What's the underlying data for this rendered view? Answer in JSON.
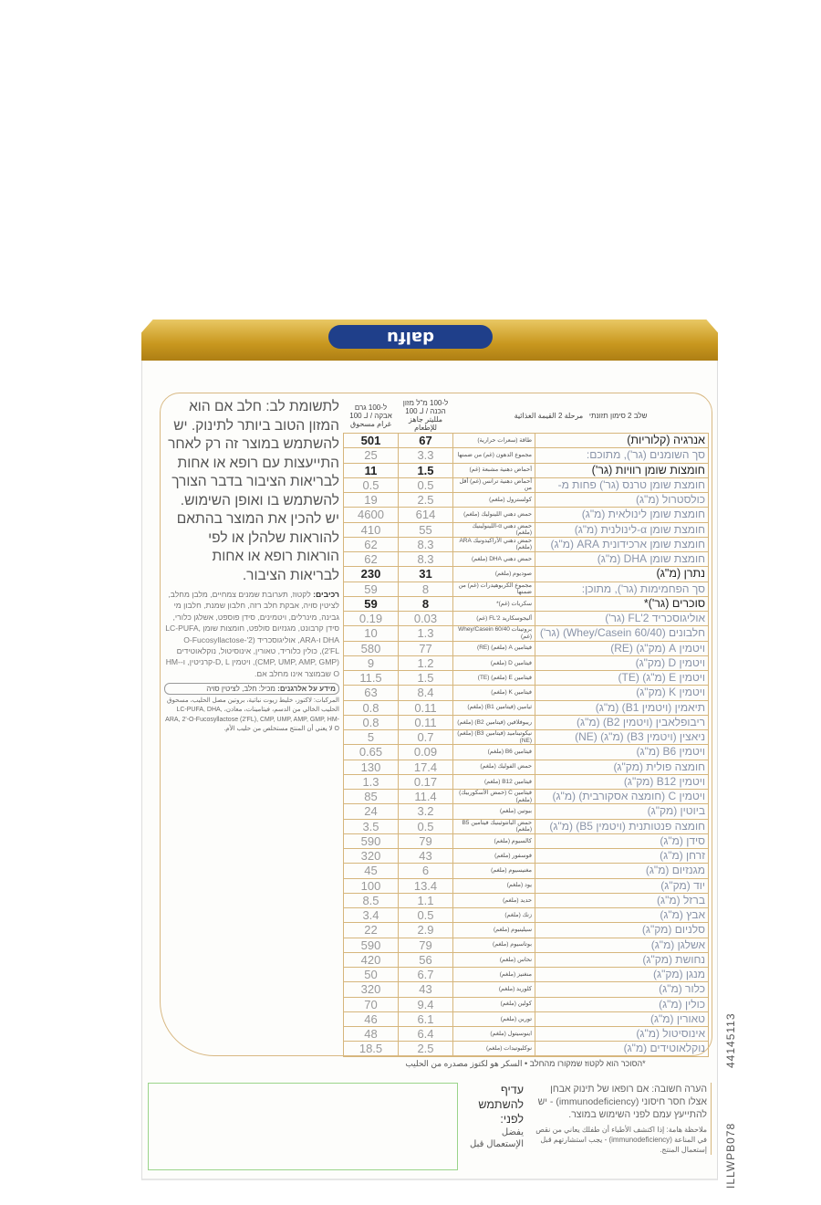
{
  "brand": {
    "logo": "dalfu"
  },
  "header": {
    "stage": "שלב 2 סימון תזונתי",
    "stage_ar": "مرحلة 2 القيمة الغذائية",
    "col_ml": "ל-100 מ\"ל מזון הכנה / لـ 100 ملليتر جاهز للإطعام",
    "col_g": "ל-100 גרם אבקה / لـ 100 غرام مسحوق"
  },
  "rows": [
    {
      "he": "אנרגיה (קלוריות)",
      "ar": "طاقة (سعرات حرارية)",
      "ml": "67",
      "g": "501",
      "bold": true
    },
    {
      "he": "סך השומנים (גר'), מתוכם:",
      "ar": "مجموع الدهون (غم) من ضمنها",
      "ml": "3.3",
      "g": "25"
    },
    {
      "he": "חומצות שומן רוויות (גר')",
      "ar": "أحماض دهنية مشبعة (غم)",
      "ml": "1.5",
      "g": "11",
      "bold": true
    },
    {
      "he": "חומצת שומן טרנס (גר') פחות מ-",
      "ar": "أحماض دهنية ترانس (غم) أقل من",
      "ml": "0.5",
      "g": "0.5"
    },
    {
      "he": "כולסטרול (מ\"ג)",
      "ar": "كولسترول (ملغم)",
      "ml": "2.5",
      "g": "19"
    },
    {
      "he": "חומצת שומן לינולאית (מ\"ג)",
      "ar": "حمض دهني اللينوليك (ملغم)",
      "ml": "614",
      "g": "4600"
    },
    {
      "he": "חומצת שומן α-לינולנית (מ\"ג)",
      "ar": "حمض دهني α-اللينولينيك (ملغم)",
      "ml": "55",
      "g": "410"
    },
    {
      "he": "חומצת שומן ארכידונית ARA (מ\"ג)",
      "ar": "حمض دهني الأراكيدونيك ARA (ملغم)",
      "ml": "8.3",
      "g": "62"
    },
    {
      "he": "חומצת שומן DHA (מ\"ג)",
      "ar": "حمض دهني DHA (ملغم)",
      "ml": "8.3",
      "g": "62"
    },
    {
      "he": "נתרן (מ\"ג)",
      "ar": "صوديوم (ملغم)",
      "ml": "31",
      "g": "230",
      "bold": true
    },
    {
      "he": "סך הפחמימות (גר'), מתוכן:",
      "ar": "مجموع الكربوهيدرات (غم) من ضمنها",
      "ml": "8",
      "g": "59"
    },
    {
      "he": "סוכרים (גר')*",
      "ar": "سكريات (غم)*",
      "ml": "8",
      "g": "59",
      "bold": true
    },
    {
      "he": "אוליגוסכריד 2'FL (גר')",
      "ar": "أليجوسكاريد 2'FL (غم)",
      "ml": "0.03",
      "g": "0.19"
    },
    {
      "he": "חלבונים (Whey/Casein 60/40) (גר')",
      "ar": "بروتينات Whey/Casein 60/40 (غم)",
      "ml": "1.3",
      "g": "10"
    },
    {
      "he": "ויטמין A (מק\"ג) (RE)",
      "ar": "فيتامين A (ملغم) (RE)",
      "ml": "77",
      "g": "580"
    },
    {
      "he": "ויטמין D (מק\"ג)",
      "ar": "فيتامين D (ملغم)",
      "ml": "1.2",
      "g": "9"
    },
    {
      "he": "ויטמין E (מ\"ג) (TE)",
      "ar": "فيتامين E (ملغم) (TE)",
      "ml": "1.5",
      "g": "11.5"
    },
    {
      "he": "ויטמין K (מק\"ג)",
      "ar": "فيتامين K (ملغم)",
      "ml": "8.4",
      "g": "63"
    },
    {
      "he": "תיאמין (ויטמין B1) (מ\"ג)",
      "ar": "ثيامين (فيتامين B1) (ملغم)",
      "ml": "0.11",
      "g": "0.8"
    },
    {
      "he": "ריבופלאבין (ויטמין B2) (מ\"ג)",
      "ar": "ريبوفلافين (فيتامين B2) (ملغم)",
      "ml": "0.11",
      "g": "0.8"
    },
    {
      "he": "ניאצין (ויטמין B3) (מ\"ג) (NE)",
      "ar": "نيكوتيناميد (فيتامين B3) (ملغم) (NE)",
      "ml": "0.7",
      "g": "5"
    },
    {
      "he": "ויטמין B6 (מ\"ג)",
      "ar": "فيتامين B6 (ملغم)",
      "ml": "0.09",
      "g": "0.65"
    },
    {
      "he": "חומצה פולית (מק\"ג)",
      "ar": "حمض الفوليك (ملغم)",
      "ml": "17.4",
      "g": "130"
    },
    {
      "he": "ויטמין B12 (מק\"ג)",
      "ar": "فيتامين B12 (ملغم)",
      "ml": "0.17",
      "g": "1.3"
    },
    {
      "he": "ויטמין C (חומצה אסקורבית) (מ\"ג)",
      "ar": "فيتامين C (حمض الأسكوربيك) (ملغم)",
      "ml": "11.4",
      "g": "85"
    },
    {
      "he": "ביוטין (מק\"ג)",
      "ar": "بيوتين (ملغم)",
      "ml": "3.2",
      "g": "24"
    },
    {
      "he": "חומצה פנטותנית (ויטמין B5) (מ\"ג)",
      "ar": "حمض البانتوثينيك فيتامين B5 (ملغم)",
      "ml": "0.5",
      "g": "3.5"
    },
    {
      "he": "סידן (מ\"ג)",
      "ar": "كالسيوم (ملغم)",
      "ml": "79",
      "g": "590"
    },
    {
      "he": "זרחן (מ\"ג)",
      "ar": "فوسفور (ملغم)",
      "ml": "43",
      "g": "320"
    },
    {
      "he": "מגנזיום (מ\"ג)",
      "ar": "مغنيسيوم (ملغم)",
      "ml": "6",
      "g": "45"
    },
    {
      "he": "יוד (מק\"ג)",
      "ar": "يود (ملغم)",
      "ml": "13.4",
      "g": "100"
    },
    {
      "he": "ברזל (מ\"ג)",
      "ar": "حديد (ملغم)",
      "ml": "1.1",
      "g": "8.5"
    },
    {
      "he": "אבץ (מ\"ג)",
      "ar": "زنك (ملغم)",
      "ml": "0.5",
      "g": "3.4"
    },
    {
      "he": "סלניום (מק\"ג)",
      "ar": "سيلينيوم (ملغم)",
      "ml": "2.9",
      "g": "22"
    },
    {
      "he": "אשלגן (מ\"ג)",
      "ar": "بوتاسيوم (ملغم)",
      "ml": "79",
      "g": "590"
    },
    {
      "he": "נחושת (מק\"ג)",
      "ar": "نحاس (ملغم)",
      "ml": "56",
      "g": "420"
    },
    {
      "he": "מנגן (מק\"ג)",
      "ar": "منغنيز (ملغم)",
      "ml": "6.7",
      "g": "50"
    },
    {
      "he": "כלור (מ\"ג)",
      "ar": "كلوريد (ملغم)",
      "ml": "43",
      "g": "320"
    },
    {
      "he": "כולין (מ\"ג)",
      "ar": "كولين (ملغم)",
      "ml": "9.4",
      "g": "70"
    },
    {
      "he": "טאורין (מ\"ג)",
      "ar": "تورين (ملغم)",
      "ml": "6.1",
      "g": "46"
    },
    {
      "he": "אינוסיטול (מ\"ג)",
      "ar": "اينوسيتول (ملغم)",
      "ml": "6.4",
      "g": "48"
    },
    {
      "he": "נוקלאוטידים (מ\"ג)",
      "ar": "نوكليوتيدات (ملغم)",
      "ml": "2.5",
      "g": "18.5"
    }
  ],
  "footnote": "*הסוכר הוא לקטוז שמקורו מהחלב  • السكر هو لكتوز مصدره من الحليب",
  "left": {
    "warning": "לתשומת לב: חלב אם הוא המזון הטוב ביותר לתינוק. יש להשתמש במוצר זה רק לאחר התייעצות עם רופא או אחות לבריאות הציבור בדבר הצורך להשתמש בו ואופן השימוש. יש להכין את המוצר בהתאם להוראות שלהלן או לפי הוראות רופא או אחות לבריאות הציבור.",
    "ingredients_label": "רכיבים:",
    "ingredients": "לקטוז, תערובת שמנים צמחיים, מלבן מחלב, לציטין סויה, אבקת חלב רזה, חלבון שמנת, חלבון מי גבינה, מינרלים, ויטמינים, סידן פוספט, אשלגן כלורי, סידן קרבונט, מגנזיום סולפט, חומצות שומן LC-PUFA, DHA ו-ARA, אוליגוסכריד (2'-O-Fucosyllactose 2'FL), כולין כלוריד, טאורין, אינוסיטול, נוקלאוטידים (CMP, UMP, AMP, GMP), ויטמין D, L-קרניטין, ו-HM-O שבמוצר אינו מחלב אם.",
    "allergy_label": "מידע על אלרגנים:",
    "allergy": "מכיל: חלב, לציטין סויה",
    "arabic": "المركبات: لاكتوز، خليط زيوت نباتية، بروتين مصل الحليب، مسحوق الحليب الخالي من الدسم، فيتامينات، معادن، LC-PUFA, DHA, ARA, 2'-O-Fucosyllactose (2'FL), CMP, UMP, AMP, GMP, HM-O لا يعني أن المنتج مستخلص من حليب الأم."
  },
  "notes": {
    "important_he": "הערה חשובה: אם רופאו של תינוק אבחן אצלו חסר חיסוני (immunodeficiency) - יש להתייעץ עמם לפני השימוש במוצר.",
    "important_ar": "ملاحظة هامة: إذا اكتشف الأطباء أن طفلك يعاني من نقص في المناعة (immunodeficiency) - يجب استشارتهم قبل إستعمال المنتج."
  },
  "best_before": {
    "he": "עדיף להשתמש לפני:",
    "ar": "يفضل الإستعمال قبل"
  },
  "codes": {
    "barcode_tail": "44145113",
    "product_code": "ILLWPB078"
  },
  "colors": {
    "gold": "#c9981f",
    "border": "#d6b67c",
    "logo_blue": "#1f3f8a",
    "date_box": "#9ad48a"
  }
}
